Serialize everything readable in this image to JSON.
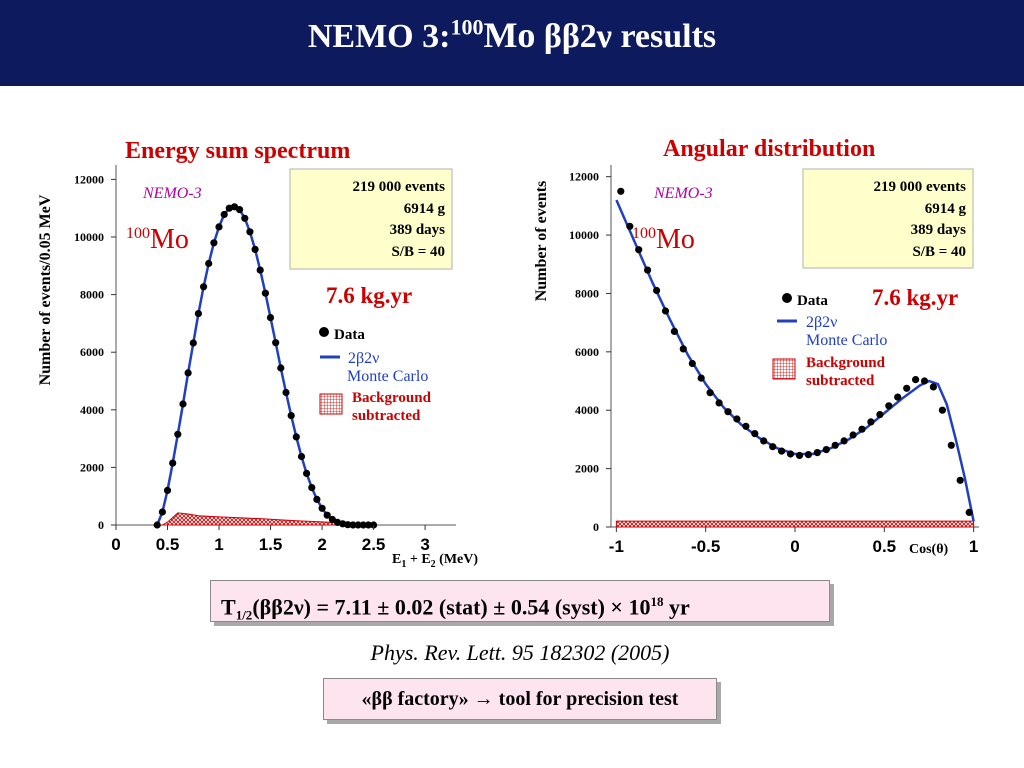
{
  "slide": {
    "title_prefix": "NEMO 3:",
    "title_isotope_mass": "100",
    "title_element": "Mo",
    "title_suffix": "ββ2ν results",
    "formula_T": "T",
    "formula_sub": "1/2",
    "formula_body": "(ββ2ν) = 7.11 ± 0.02 (stat) ± 0.54 (syst) × 10",
    "formula_exp": "18",
    "formula_unit": " yr",
    "reference": "Phys. Rev. Lett. 95 182302 (2005)",
    "factory_text": "«ββ factory» → tool for precision test"
  },
  "panels": {
    "left_title": "Energy sum spectrum",
    "right_title": "Angular distribution"
  },
  "colors": {
    "header_bg": "#0d1a5e",
    "red": "#cc0000",
    "blue": "#2040c0",
    "magenta": "#b000a0",
    "infobox": "#ffffcc",
    "pinkbox": "#fde4ef"
  },
  "chart_data": [
    {
      "type": "line",
      "title": "Energy sum spectrum",
      "xlabel": "E1 + E2  (MeV)",
      "xlabel_main": "E",
      "xlabel_s1": "1",
      "xlabel_mid": " + E",
      "xlabel_s2": "2",
      "xlabel_unit": "  (MeV)",
      "ylabel": "Number of events/0.05 MeV",
      "xlim": [
        0,
        3.3
      ],
      "ylim": [
        0,
        12500
      ],
      "xticks": [
        "0",
        "0.5",
        "1",
        "1.5",
        "2",
        "2.5",
        "3"
      ],
      "yticks": [
        "0",
        "2000",
        "4000",
        "6000",
        "8000",
        "10000",
        "12000"
      ],
      "experiment": "NEMO-3",
      "isotope_mass": "100",
      "isotope_element": "Mo",
      "info": [
        "219 000  events",
        "6914 g",
        "389 days",
        "S/B = 40"
      ],
      "exposure": "7.6 kg.yr",
      "legend": {
        "data": "Data",
        "mc1": "2β2ν",
        "mc2": "Monte Carlo",
        "bg1": "Background",
        "bg2": "subtracted"
      },
      "series": [
        {
          "name": "Data",
          "x": [
            0.4,
            0.45,
            0.5,
            0.55,
            0.6,
            0.65,
            0.7,
            0.75,
            0.8,
            0.85,
            0.9,
            0.95,
            1.0,
            1.05,
            1.1,
            1.15,
            1.2,
            1.25,
            1.3,
            1.35,
            1.4,
            1.45,
            1.5,
            1.55,
            1.6,
            1.65,
            1.7,
            1.75,
            1.8,
            1.85,
            1.9,
            1.95,
            2.0,
            2.05,
            2.1,
            2.15,
            2.2,
            2.25,
            2.3,
            2.35,
            2.4,
            2.45,
            2.5
          ],
          "y": [
            0,
            450,
            1200,
            2150,
            3150,
            4200,
            5280,
            6320,
            7340,
            8270,
            9080,
            9800,
            10350,
            10780,
            11000,
            11050,
            10950,
            10650,
            10180,
            9570,
            8850,
            8050,
            7200,
            6330,
            5450,
            4600,
            3800,
            3060,
            2380,
            1790,
            1300,
            890,
            580,
            340,
            190,
            90,
            40,
            10,
            0,
            0,
            0,
            0,
            0
          ]
        },
        {
          "name": "2β2ν Monte Carlo",
          "x": [
            0.4,
            0.45,
            0.5,
            0.55,
            0.6,
            0.65,
            0.7,
            0.75,
            0.8,
            0.85,
            0.9,
            0.95,
            1.0,
            1.05,
            1.1,
            1.15,
            1.2,
            1.25,
            1.3,
            1.35,
            1.4,
            1.45,
            1.5,
            1.55,
            1.6,
            1.65,
            1.7,
            1.75,
            1.8,
            1.85,
            1.9,
            1.95,
            2.0,
            2.05,
            2.1,
            2.15,
            2.2,
            2.25,
            2.3,
            2.35,
            2.4,
            2.45,
            2.5
          ],
          "y": [
            0,
            450,
            1200,
            2150,
            3150,
            4200,
            5280,
            6320,
            7340,
            8270,
            9080,
            9800,
            10350,
            10780,
            11000,
            11050,
            10950,
            10650,
            10180,
            9570,
            8850,
            8050,
            7200,
            6330,
            5450,
            4600,
            3800,
            3060,
            2380,
            1790,
            1300,
            890,
            580,
            340,
            190,
            90,
            40,
            10,
            0,
            0,
            0,
            0,
            0
          ]
        },
        {
          "name": "Background subtracted",
          "x": [
            0.45,
            0.5,
            0.6,
            0.7,
            0.8,
            1.0,
            1.2,
            1.4,
            1.6,
            1.8,
            2.0,
            2.2,
            2.4,
            2.5
          ],
          "y": [
            0,
            100,
            420,
            380,
            320,
            280,
            250,
            220,
            180,
            140,
            110,
            70,
            30,
            0
          ]
        }
      ]
    },
    {
      "type": "line",
      "title": "Angular distribution",
      "xlabel": "Cos(θ)",
      "ylabel": "Number of events",
      "xlim": [
        -1.03,
        1.03
      ],
      "ylim": [
        0,
        12400
      ],
      "xticks": [
        "-1",
        "-0.5",
        "0",
        "0.5",
        "1"
      ],
      "yticks": [
        "0",
        "2000",
        "4000",
        "6000",
        "8000",
        "10000",
        "12000"
      ],
      "experiment": "NEMO-3",
      "isotope_mass": "100",
      "isotope_element": "Mo",
      "info": [
        "219 000  events",
        "6914 g",
        "389 days",
        "S/B = 40"
      ],
      "exposure": "7.6 kg.yr",
      "legend": {
        "data": "Data",
        "mc1": "2β2ν",
        "mc2": "Monte Carlo",
        "bg1": "Background",
        "bg2": "subtracted"
      },
      "series": [
        {
          "name": "Data",
          "x": [
            -0.975,
            -0.925,
            -0.875,
            -0.825,
            -0.775,
            -0.725,
            -0.675,
            -0.625,
            -0.575,
            -0.525,
            -0.475,
            -0.425,
            -0.375,
            -0.325,
            -0.275,
            -0.225,
            -0.175,
            -0.125,
            -0.075,
            -0.025,
            0.025,
            0.075,
            0.125,
            0.175,
            0.225,
            0.275,
            0.325,
            0.375,
            0.425,
            0.475,
            0.525,
            0.575,
            0.625,
            0.675,
            0.725,
            0.775,
            0.825,
            0.875,
            0.925,
            0.975
          ],
          "y": [
            11500,
            10300,
            9500,
            8800,
            8100,
            7400,
            6700,
            6100,
            5600,
            5100,
            4600,
            4250,
            3950,
            3700,
            3450,
            3200,
            2950,
            2750,
            2600,
            2500,
            2450,
            2480,
            2550,
            2650,
            2800,
            2950,
            3150,
            3350,
            3600,
            3850,
            4150,
            4450,
            4750,
            5050,
            5000,
            4800,
            4000,
            2800,
            1600,
            500
          ]
        },
        {
          "name": "2β2ν Monte Carlo",
          "x": [
            -1.0,
            -0.9,
            -0.8,
            -0.7,
            -0.6,
            -0.5,
            -0.4,
            -0.3,
            -0.2,
            -0.1,
            0.0,
            0.1,
            0.2,
            0.3,
            0.4,
            0.5,
            0.6,
            0.7,
            0.75,
            0.8,
            0.85,
            0.9,
            0.95,
            1.0
          ],
          "y": [
            11200,
            9800,
            8400,
            7100,
            5900,
            4900,
            4100,
            3500,
            3050,
            2700,
            2500,
            2500,
            2700,
            3000,
            3400,
            3900,
            4400,
            4850,
            5000,
            4900,
            4200,
            3000,
            1700,
            200
          ]
        },
        {
          "name": "Background subtracted",
          "x": [
            -1.0,
            -0.5,
            0.0,
            0.5,
            1.0
          ],
          "y": [
            200,
            200,
            200,
            200,
            200
          ]
        }
      ]
    }
  ]
}
